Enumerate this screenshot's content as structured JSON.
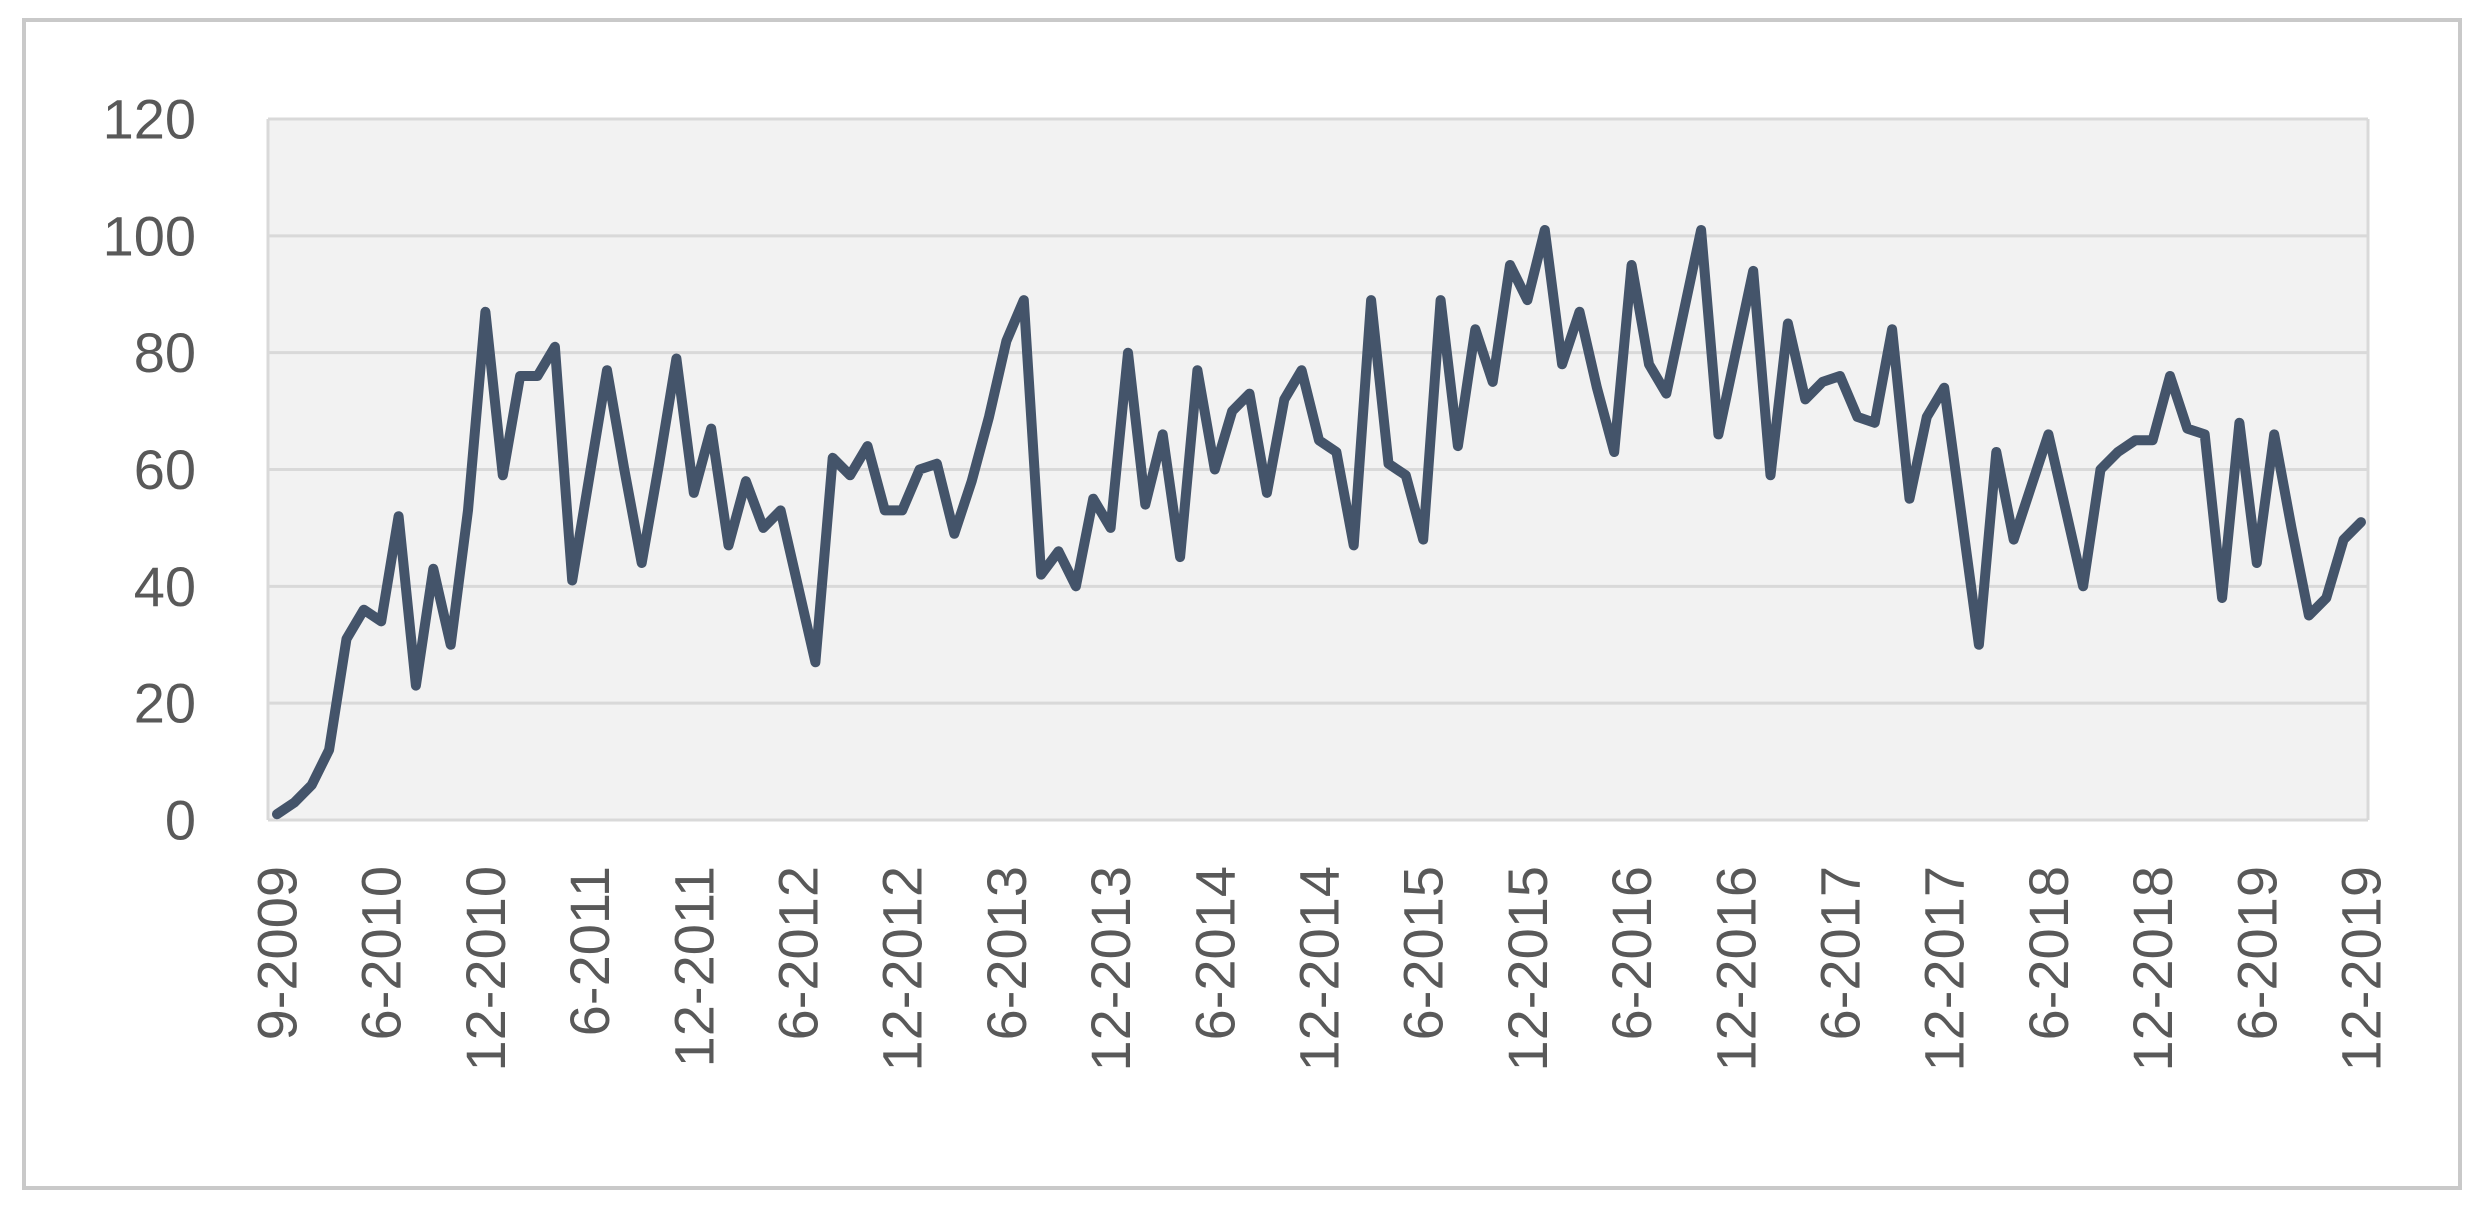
{
  "chart_data": {
    "type": "line",
    "title": "",
    "xlabel": "",
    "ylabel": "",
    "legend": "none",
    "grid": "horizontal",
    "x_tick_labels": [
      "9-2009",
      "6-2010",
      "12-2010",
      "6-2011",
      "12-2011",
      "6-2012",
      "12-2012",
      "6-2013",
      "12-2013",
      "6-2014",
      "12-2014",
      "6-2015",
      "12-2015",
      "6-2016",
      "12-2016",
      "6-2017",
      "12-2017",
      "6-2018",
      "12-2018",
      "6-2019",
      "12-2019"
    ],
    "x_label_interval": 6,
    "values": [
      1,
      3,
      6,
      12,
      31,
      36,
      34,
      52,
      23,
      43,
      30,
      53,
      87,
      59,
      76,
      76,
      81,
      41,
      59,
      77,
      60,
      44,
      61,
      79,
      56,
      67,
      47,
      58,
      50,
      53,
      40,
      27,
      62,
      59,
      64,
      53,
      53,
      60,
      61,
      49,
      58,
      69,
      82,
      89,
      42,
      46,
      40,
      55,
      50,
      80,
      54,
      66,
      45,
      77,
      60,
      70,
      73,
      56,
      72,
      77,
      65,
      63,
      47,
      89,
      61,
      59,
      48,
      89,
      64,
      84,
      75,
      95,
      89,
      101,
      78,
      87,
      74,
      63,
      95,
      78,
      73,
      87,
      101,
      66,
      80,
      94,
      59,
      85,
      72,
      75,
      76,
      69,
      68,
      84,
      55,
      69,
      74,
      52,
      30,
      63,
      48,
      57,
      66,
      53,
      40,
      60,
      63,
      65,
      65,
      76,
      67,
      66,
      38,
      68,
      44,
      66,
      50,
      35,
      38,
      48,
      51
    ],
    "ylim": [
      0,
      120
    ],
    "ytick_step": 20,
    "ytick_labels": [
      "0",
      "20",
      "40",
      "60",
      "80",
      "100",
      "120"
    ],
    "colors": {
      "line": "#44546A",
      "plot_background": "#F2F2F2",
      "gridline": "#D9D9D9",
      "tick_label": "#595959",
      "frame_border": "#C9C9C9",
      "page_background": "#FFFFFF"
    }
  }
}
